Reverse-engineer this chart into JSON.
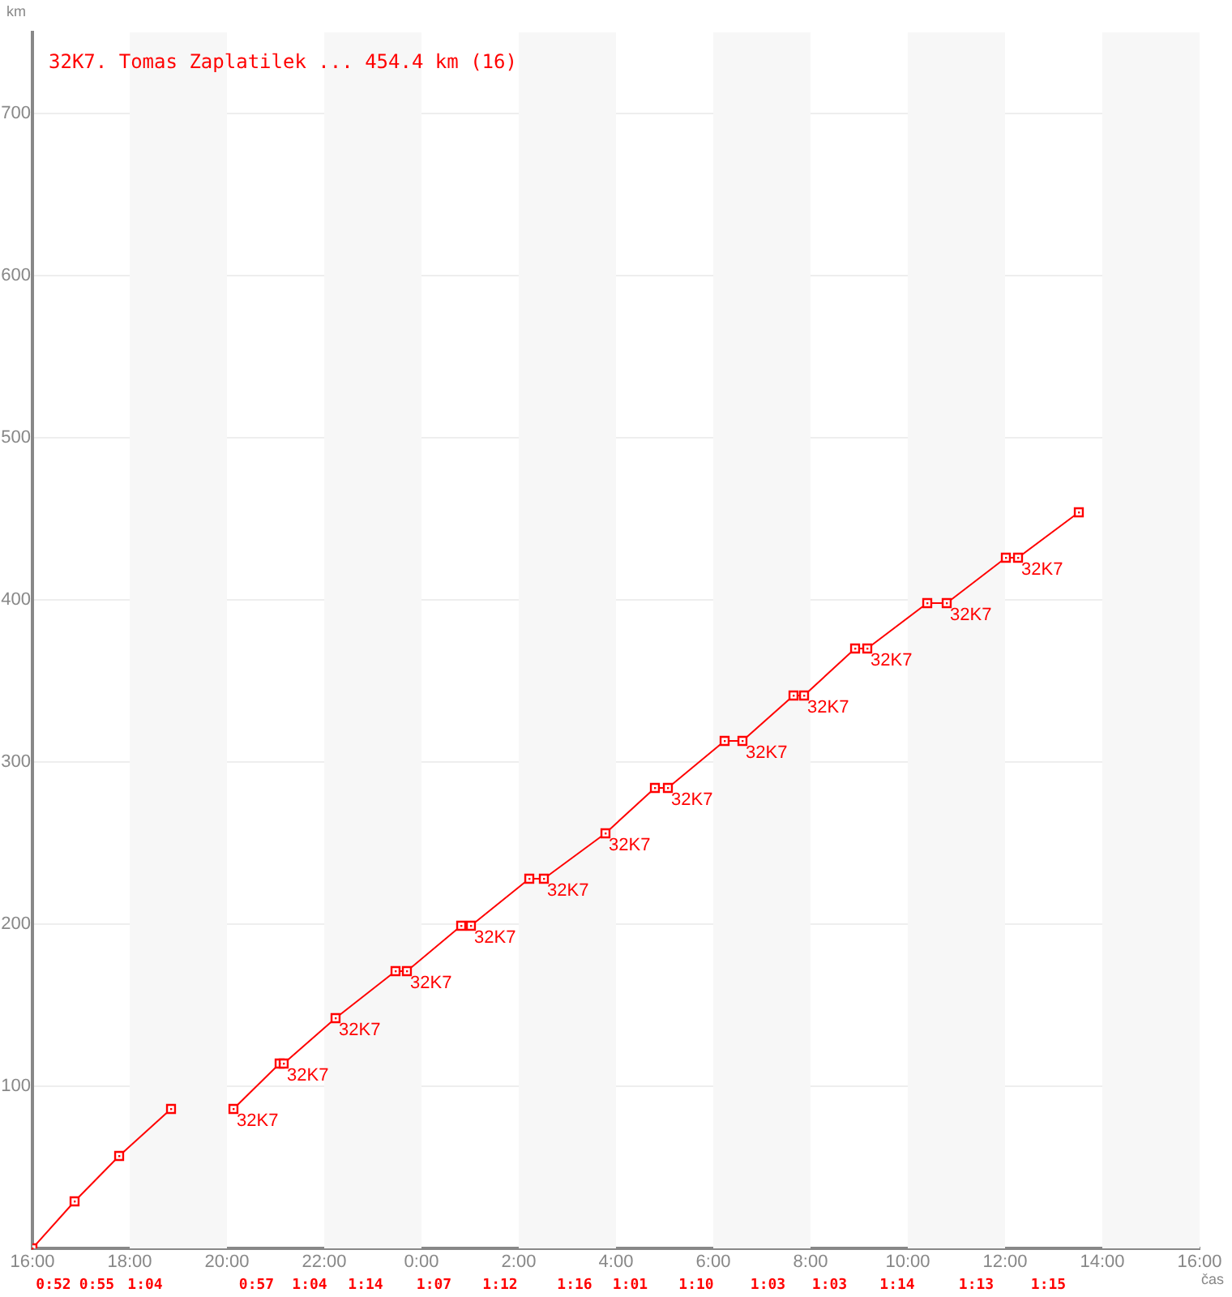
{
  "chart_data": {
    "type": "line",
    "title": "32K7. Tomas Zaplatilek ... 454.4 km (16)",
    "ylabel": "km",
    "xlabel": "čas",
    "xlim": [
      "--01-01T16:00",
      "--01-02T16:00"
    ],
    "xticks": [
      {
        "value": "--01-01T16:00",
        "label": "16:00"
      },
      {
        "value": "--01-01T18:00",
        "label": "18:00"
      },
      {
        "value": "--01-01T20:00",
        "label": "20:00"
      },
      {
        "value": "--01-01T22:00",
        "label": "22:00"
      },
      {
        "value": "--01-02T00:00",
        "label": "0:00"
      },
      {
        "value": "--01-02T02:00",
        "label": "2:00"
      },
      {
        "value": "--01-02T04:00",
        "label": "4:00"
      },
      {
        "value": "--01-02T06:00",
        "label": "6:00"
      },
      {
        "value": "--01-02T08:00",
        "label": "8:00"
      },
      {
        "value": "--01-02T10:00",
        "label": "10:00"
      },
      {
        "value": "--01-02T12:00",
        "label": "12:00"
      },
      {
        "value": "--01-02T14:00",
        "label": "14:00"
      },
      {
        "value": "--01-02T16:00",
        "label": "16:00"
      }
    ],
    "ylim": [
      0,
      750
    ],
    "yticks": [
      100,
      200,
      300,
      400,
      500,
      600,
      700
    ],
    "grid": "y",
    "marker": "square",
    "line_style": "solid",
    "series": [
      {
        "color": "#ff0000",
        "x": [
          "--01-01T16:00",
          "--01-01T16:52",
          "--01-01T17:47",
          "--01-01T18:51"
        ],
        "values": [
          0,
          29,
          57,
          86
        ]
      },
      {
        "color": "#ff0000",
        "x": [
          "--01-01T20:08",
          "--01-01T21:05",
          "--01-01T21:10",
          "--01-01T22:14",
          "--01-01T23:28",
          "--01-01T23:42",
          "--01-02T00:49",
          "--01-02T01:01",
          "--01-02T02:13",
          "--01-02T02:31",
          "--01-02T03:47",
          "--01-02T04:48",
          "--01-02T05:04",
          "--01-02T06:14",
          "--01-02T06:36",
          "--01-02T07:39",
          "--01-02T07:52",
          "--01-02T08:55",
          "--01-02T09:10",
          "--01-02T10:24",
          "--01-02T10:48",
          "--01-02T12:01",
          "--01-02T12:16",
          "--01-02T13:31"
        ],
        "values": [
          86,
          114,
          114,
          142,
          171,
          171,
          199,
          199,
          228,
          228,
          256,
          284,
          284,
          313,
          313,
          341,
          341,
          370,
          370,
          398,
          398,
          426,
          426,
          454
        ]
      }
    ],
    "bands": [
      {
        "axis": "x",
        "from": "--01-01T18:00",
        "to": "--01-01T20:00",
        "color": "#f7f7f7"
      },
      {
        "axis": "x",
        "from": "--01-01T22:00",
        "to": "--01-02T00:00",
        "color": "#f7f7f7"
      },
      {
        "axis": "x",
        "from": "--01-02T02:00",
        "to": "--01-02T04:00",
        "color": "#f7f7f7"
      },
      {
        "axis": "x",
        "from": "--01-02T06:00",
        "to": "--01-02T08:00",
        "color": "#f7f7f7"
      },
      {
        "axis": "x",
        "from": "--01-02T10:00",
        "to": "--01-02T12:00",
        "color": "#f7f7f7"
      },
      {
        "axis": "x",
        "from": "--01-02T14:00",
        "to": "--01-02T16:00",
        "color": "#f7f7f7"
      }
    ],
    "annotations": [
      {
        "text": "32K7",
        "x": "--01-01T20:08",
        "y": 86
      },
      {
        "text": "32K7",
        "x": "--01-01T21:10",
        "y": 114
      },
      {
        "text": "32K7",
        "x": "--01-01T22:14",
        "y": 142
      },
      {
        "text": "32K7",
        "x": "--01-01T23:42",
        "y": 171
      },
      {
        "text": "32K7",
        "x": "--01-02T01:01",
        "y": 199
      },
      {
        "text": "32K7",
        "x": "--01-02T02:31",
        "y": 228
      },
      {
        "text": "32K7",
        "x": "--01-02T03:47",
        "y": 256
      },
      {
        "text": "32K7",
        "x": "--01-02T05:04",
        "y": 284
      },
      {
        "text": "32K7",
        "x": "--01-02T06:36",
        "y": 313
      },
      {
        "text": "32K7",
        "x": "--01-02T07:52",
        "y": 341
      },
      {
        "text": "32K7",
        "x": "--01-02T09:10",
        "y": 370
      },
      {
        "text": "32K7",
        "x": "--01-02T10:48",
        "y": 398
      },
      {
        "text": "32K7",
        "x": "--01-02T12:16",
        "y": 426
      },
      "0:52",
      "0:55",
      "1:04",
      "0:57",
      "1:04",
      "1:14",
      "1:07",
      "1:12",
      "1:16",
      "1:01",
      "1:10",
      "1:03",
      "1:03",
      "1:14",
      "1:13",
      "1:15"
    ]
  }
}
